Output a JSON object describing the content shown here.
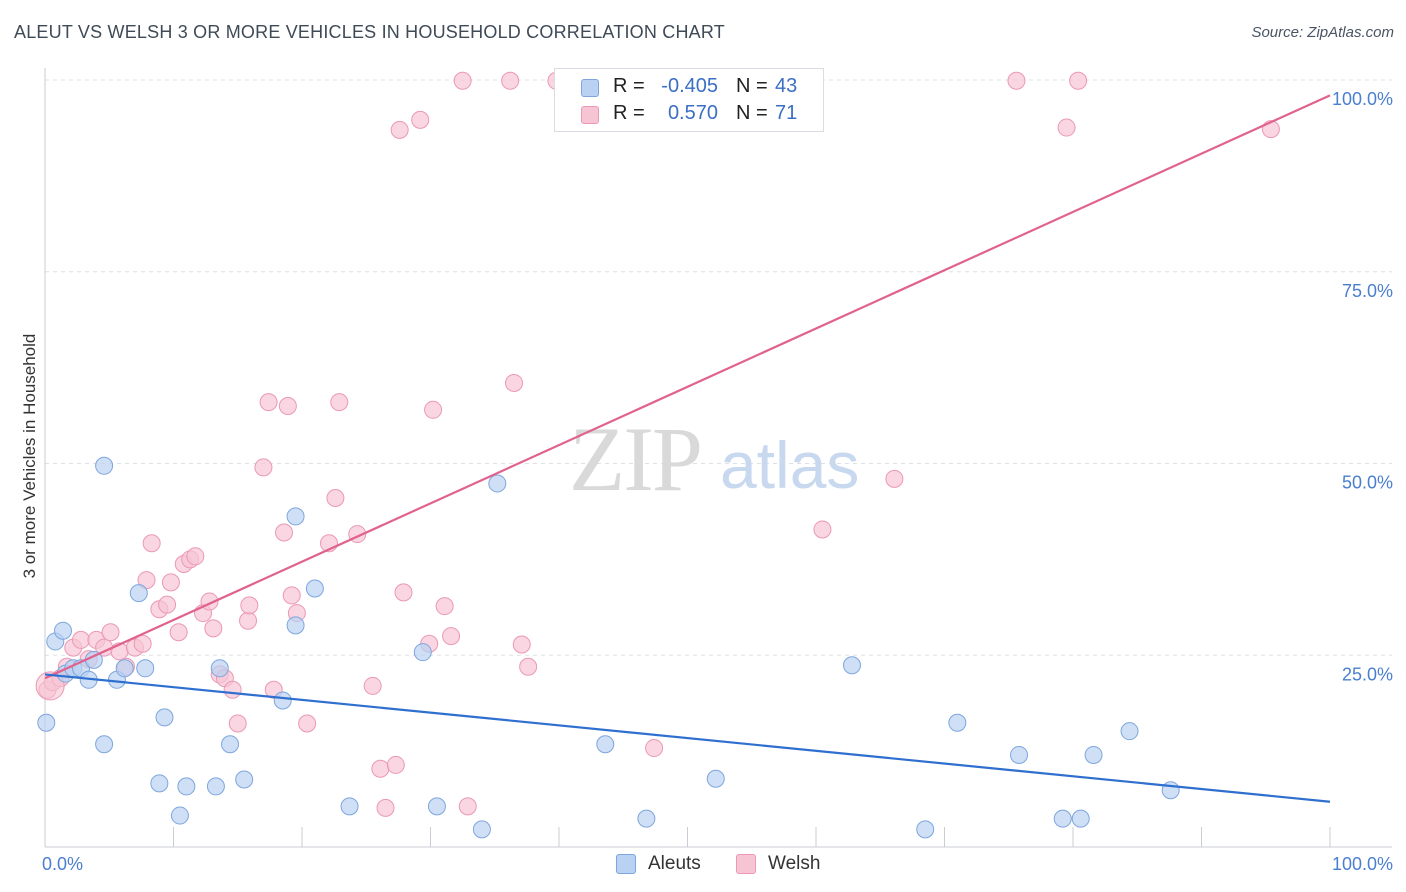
{
  "title": "ALEUT VS WELSH 3 OR MORE VEHICLES IN HOUSEHOLD CORRELATION CHART",
  "source": "Source: ZipAtlas.com",
  "watermark": {
    "zip": "ZIP",
    "atlas": "atlas"
  },
  "colors": {
    "aleut_fill": "#b9d1f2",
    "aleut_stroke": "#7ea6dd",
    "aleut_line": "#2f6fcf",
    "welsh_fill": "#f7c4d4",
    "welsh_stroke": "#ec98b4",
    "welsh_line": "#e0628d",
    "axis_label": "#4a7fcf",
    "grid": "#dde1e6"
  },
  "legend_top": [
    {
      "series": "aleut",
      "r_label": "R =",
      "r_value": "-0.405",
      "n_label": "N =",
      "n_value": "43"
    },
    {
      "series": "welsh",
      "r_label": "R =",
      "r_value": "0.570",
      "n_label": "N =",
      "n_value": "71"
    }
  ],
  "legend_bottom": [
    {
      "series": "aleut",
      "label": "Aleuts"
    },
    {
      "series": "welsh",
      "label": "Welsh"
    }
  ],
  "chart_data": {
    "type": "scatter",
    "title": "ALEUT VS WELSH 3 OR MORE VEHICLES IN HOUSEHOLD CORRELATION CHART",
    "xlabel": "",
    "ylabel": "3 or more Vehicles in Household",
    "xlim": [
      0,
      100
    ],
    "ylim": [
      0,
      100
    ],
    "x_tick_labels": [
      {
        "value": 0,
        "label": "0.0%"
      },
      {
        "value": 100,
        "label": "100.0%"
      }
    ],
    "y_tick_labels": [
      {
        "value": 25,
        "label": "25.0%"
      },
      {
        "value": 50,
        "label": "50.0%"
      },
      {
        "value": 75,
        "label": "75.0%"
      },
      {
        "value": 100,
        "label": "100.0%"
      }
    ],
    "grid": true,
    "series": [
      {
        "name": "Aleuts",
        "r": -0.405,
        "n": 43,
        "trend": [
          [
            0,
            22.5
          ],
          [
            100,
            5.9
          ]
        ],
        "points": [
          [
            0.1,
            16.2
          ],
          [
            0.8,
            26.8
          ],
          [
            1.4,
            28.2
          ],
          [
            1.6,
            22.6
          ],
          [
            2.2,
            23.3
          ],
          [
            2.8,
            23.3
          ],
          [
            3.4,
            21.8
          ],
          [
            3.8,
            24.4
          ],
          [
            4.6,
            13.4
          ],
          [
            4.6,
            49.7
          ],
          [
            5.6,
            21.8
          ],
          [
            6.2,
            23.3
          ],
          [
            7.3,
            33.1
          ],
          [
            7.8,
            23.3
          ],
          [
            8.9,
            8.3
          ],
          [
            9.3,
            16.9
          ],
          [
            10.5,
            4.1
          ],
          [
            11.0,
            7.9
          ],
          [
            13.3,
            7.9
          ],
          [
            13.6,
            23.3
          ],
          [
            14.4,
            13.4
          ],
          [
            15.5,
            8.8
          ],
          [
            18.5,
            19.1
          ],
          [
            19.5,
            43.1
          ],
          [
            19.5,
            28.9
          ],
          [
            21.0,
            33.7
          ],
          [
            23.7,
            5.3
          ],
          [
            29.4,
            25.4
          ],
          [
            30.5,
            5.3
          ],
          [
            34.0,
            2.3
          ],
          [
            35.2,
            47.4
          ],
          [
            43.6,
            13.4
          ],
          [
            46.8,
            3.7
          ],
          [
            52.2,
            8.9
          ],
          [
            62.8,
            23.7
          ],
          [
            68.5,
            2.3
          ],
          [
            71.0,
            16.2
          ],
          [
            75.8,
            12.0
          ],
          [
            79.2,
            3.7
          ],
          [
            80.6,
            3.7
          ],
          [
            81.6,
            12.0
          ],
          [
            84.4,
            15.1
          ],
          [
            87.6,
            7.4
          ]
        ]
      },
      {
        "name": "Welsh",
        "r": 0.57,
        "n": 71,
        "trend": [
          [
            0,
            22.0
          ],
          [
            100,
            98.0
          ]
        ],
        "points": [
          [
            0.2,
            20.5
          ],
          [
            0.6,
            21.5
          ],
          [
            1.2,
            22.0
          ],
          [
            1.7,
            23.5
          ],
          [
            2.2,
            26.0
          ],
          [
            2.8,
            27.0
          ],
          [
            3.4,
            24.5
          ],
          [
            4.0,
            27.0
          ],
          [
            4.6,
            26.0
          ],
          [
            5.1,
            28.0
          ],
          [
            5.8,
            25.5
          ],
          [
            6.3,
            23.5
          ],
          [
            7.0,
            26.0
          ],
          [
            7.6,
            26.5
          ],
          [
            7.9,
            34.8
          ],
          [
            8.3,
            39.6
          ],
          [
            8.9,
            31.0
          ],
          [
            9.5,
            31.6
          ],
          [
            9.8,
            34.5
          ],
          [
            10.4,
            28.0
          ],
          [
            10.8,
            36.9
          ],
          [
            11.3,
            37.5
          ],
          [
            11.7,
            37.9
          ],
          [
            12.3,
            30.5
          ],
          [
            12.8,
            32.0
          ],
          [
            13.1,
            28.5
          ],
          [
            13.6,
            22.5
          ],
          [
            14.0,
            22.0
          ],
          [
            14.6,
            20.5
          ],
          [
            15.0,
            16.1
          ],
          [
            15.8,
            29.5
          ],
          [
            15.9,
            31.5
          ],
          [
            17.0,
            49.5
          ],
          [
            17.4,
            58.0
          ],
          [
            17.8,
            20.5
          ],
          [
            18.6,
            41.0
          ],
          [
            18.9,
            57.5
          ],
          [
            19.2,
            32.8
          ],
          [
            19.6,
            30.5
          ],
          [
            20.4,
            16.1
          ],
          [
            22.1,
            39.6
          ],
          [
            22.6,
            45.5
          ],
          [
            22.9,
            58.0
          ],
          [
            24.3,
            40.8
          ],
          [
            25.5,
            21.0
          ],
          [
            26.1,
            10.2
          ],
          [
            26.5,
            5.1
          ],
          [
            27.3,
            10.7
          ],
          [
            27.6,
            93.5
          ],
          [
            27.9,
            33.2
          ],
          [
            29.2,
            94.8
          ],
          [
            29.9,
            26.5
          ],
          [
            30.2,
            57.0
          ],
          [
            31.1,
            31.4
          ],
          [
            31.6,
            27.5
          ],
          [
            32.5,
            99.9
          ],
          [
            32.9,
            5.3
          ],
          [
            36.2,
            99.9
          ],
          [
            36.5,
            60.5
          ],
          [
            37.1,
            26.4
          ],
          [
            37.6,
            23.5
          ],
          [
            39.8,
            99.9
          ],
          [
            40.8,
            99.7
          ],
          [
            42.1,
            99.9
          ],
          [
            47.4,
            12.9
          ],
          [
            60.5,
            41.4
          ],
          [
            66.1,
            48.0
          ],
          [
            75.6,
            99.9
          ],
          [
            79.5,
            93.8
          ],
          [
            80.4,
            99.9
          ],
          [
            95.4,
            93.6
          ]
        ]
      }
    ]
  }
}
